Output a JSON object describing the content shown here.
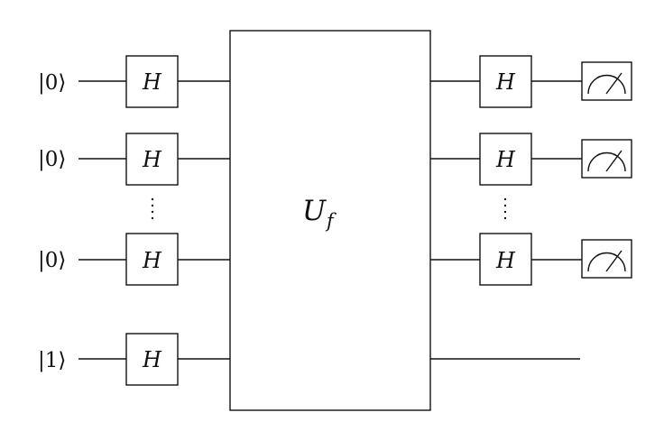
{
  "inputs": [
    {
      "state": "|0⟩"
    },
    {
      "state": "|0⟩"
    },
    {
      "state": "|0⟩"
    },
    {
      "state": "|1⟩"
    }
  ],
  "gates": {
    "hadamard_label": "H"
  },
  "oracle": {
    "main": "U",
    "sub": "f"
  },
  "measurements": [
    {
      "icon": "measurement-meter-icon"
    },
    {
      "icon": "measurement-meter-icon"
    },
    {
      "icon": "measurement-meter-icon"
    }
  ],
  "colors": {
    "ink": "#111111",
    "background": "#ffffff"
  }
}
